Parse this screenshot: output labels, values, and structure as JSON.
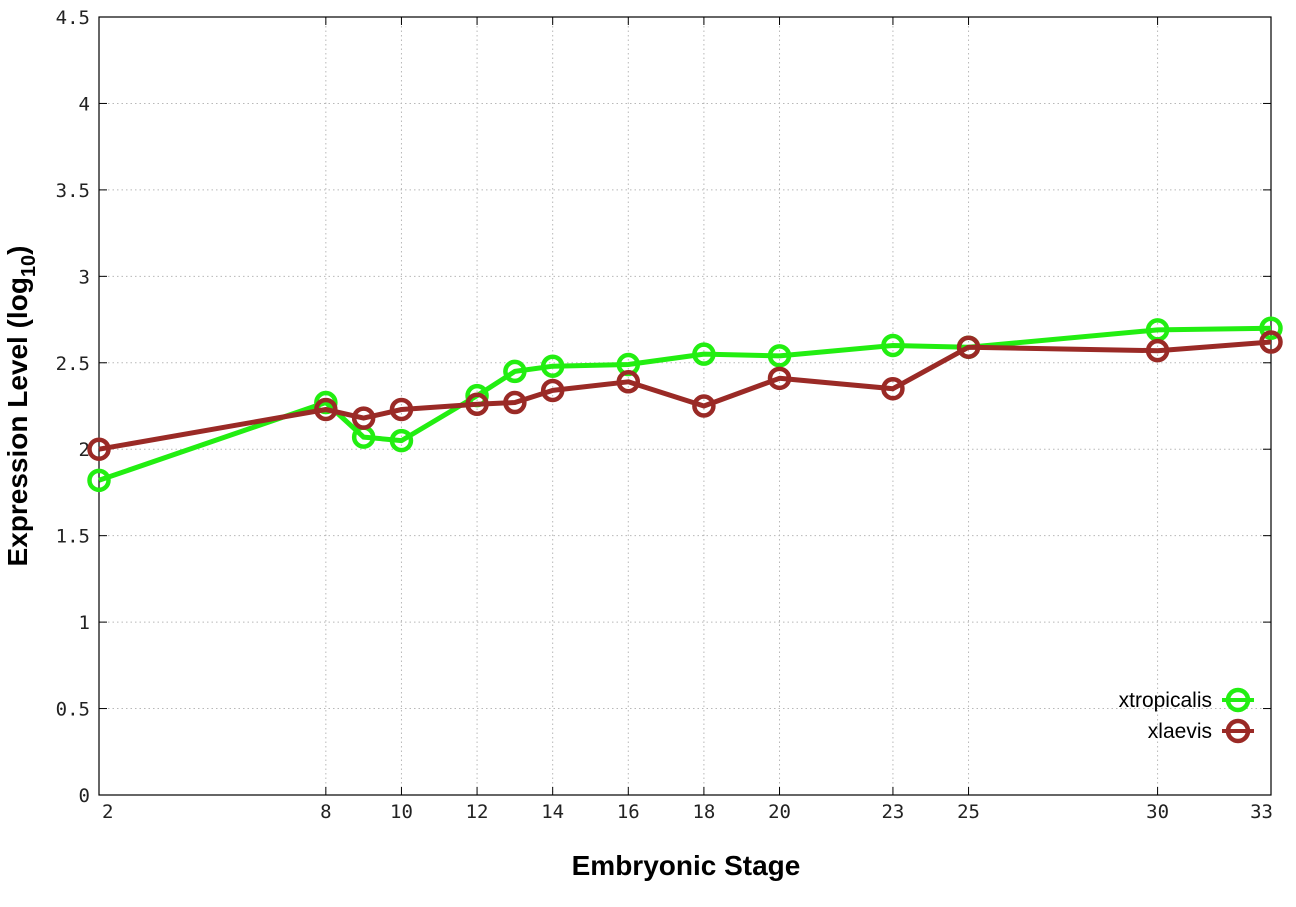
{
  "chart_data": {
    "type": "line",
    "xlabel": "Embryonic Stage",
    "ylabel": "Expression Level (log",
    "ylabel_subscript": "10",
    "ylabel_close": ")",
    "xlim": [
      2,
      33
    ],
    "ylim": [
      0,
      4.5
    ],
    "x_ticks": [
      2,
      8,
      10,
      12,
      14,
      16,
      18,
      20,
      23,
      25,
      30,
      33
    ],
    "x_tick_labels": [
      "2",
      "8",
      "10",
      "12",
      "14",
      "16",
      "18",
      "20",
      "23",
      "25",
      "30",
      "33"
    ],
    "y_ticks": [
      0,
      0.5,
      1,
      1.5,
      2,
      2.5,
      3,
      3.5,
      4,
      4.5
    ],
    "y_tick_labels": [
      "0",
      "0.5",
      "1",
      "1.5",
      "2",
      "2.5",
      "3",
      "3.5",
      "4",
      "4.5"
    ],
    "grid": true,
    "legend_position": "bottom-right",
    "series": [
      {
        "name": "xtropicalis",
        "color": "#22ee11",
        "marker": "open-circle",
        "x": [
          2,
          8,
          9,
          10,
          12,
          13,
          14,
          16,
          18,
          20,
          23,
          25,
          30,
          33
        ],
        "y": [
          1.82,
          2.27,
          2.07,
          2.05,
          2.31,
          2.45,
          2.48,
          2.49,
          2.55,
          2.54,
          2.6,
          2.59,
          2.69,
          2.7
        ]
      },
      {
        "name": "xlaevis",
        "color": "#9a2a26",
        "marker": "open-circle",
        "x": [
          2,
          8,
          9,
          10,
          12,
          13,
          14,
          16,
          18,
          20,
          23,
          25,
          30,
          33
        ],
        "y": [
          2.0,
          2.23,
          2.18,
          2.23,
          2.26,
          2.27,
          2.34,
          2.39,
          2.25,
          2.41,
          2.35,
          2.59,
          2.57,
          2.62
        ]
      }
    ]
  }
}
